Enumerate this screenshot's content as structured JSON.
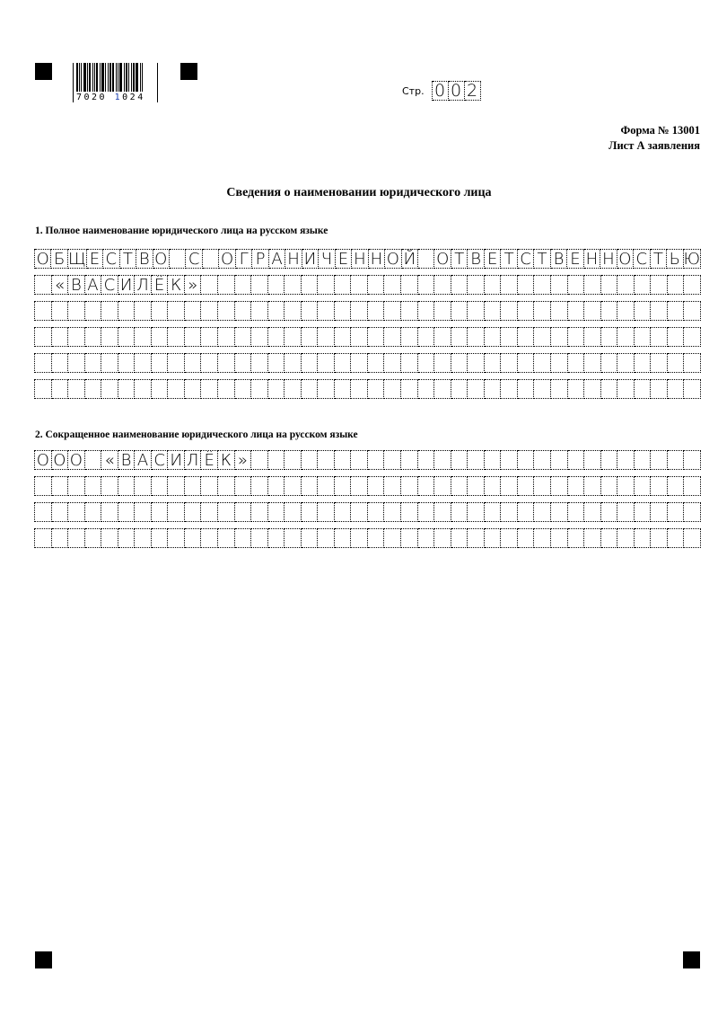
{
  "barcode": {
    "digits_left": "7020",
    "digits_right_first": "1",
    "digits_right_rest": "024"
  },
  "page_number": {
    "label": "Стр.",
    "digits": [
      "0",
      "0",
      "2"
    ]
  },
  "form": {
    "number": "Форма № 13001",
    "sheet": "Лист А заявления"
  },
  "title": "Сведения о наименовании юридического лица",
  "sections": [
    {
      "label": "1. Полное наименование юридического лица на русском языке",
      "rows": [
        "ОБЩЕСТВО С ОГРАНИЧЕННОЙ ОТВЕТСТВЕННОСТЬЮ",
        " «ВАСИЛЁК»",
        "",
        "",
        "",
        ""
      ]
    },
    {
      "label": "2. Сокращенное наименование юридического лица на русском языке",
      "rows": [
        "ООО «ВАСИЛЁК»",
        "",
        "",
        ""
      ]
    }
  ]
}
